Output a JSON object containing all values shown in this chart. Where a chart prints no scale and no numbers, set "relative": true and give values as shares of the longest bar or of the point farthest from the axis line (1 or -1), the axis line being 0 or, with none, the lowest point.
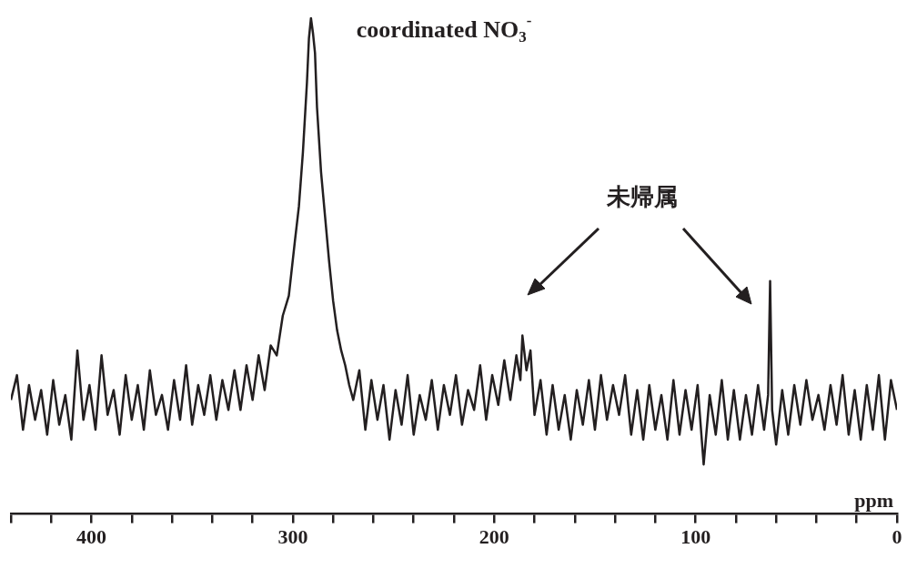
{
  "chart_data": {
    "type": "line",
    "relative": true,
    "xlabel": "ppm",
    "xlim": [
      440,
      0
    ],
    "xticks": [
      {
        "value": 440,
        "label": null
      },
      {
        "value": 420,
        "label": null
      },
      400,
      {
        "value": 380,
        "label": null
      },
      {
        "value": 360,
        "label": null
      },
      {
        "value": 340,
        "label": null
      },
      {
        "value": 320,
        "label": null
      },
      300,
      {
        "value": 280,
        "label": null
      },
      {
        "value": 260,
        "label": null
      },
      {
        "value": 240,
        "label": null
      },
      {
        "value": 220,
        "label": null
      },
      200,
      {
        "value": 180,
        "label": null
      },
      {
        "value": 160,
        "label": null
      },
      {
        "value": 140,
        "label": null
      },
      {
        "value": 120,
        "label": null
      },
      100,
      {
        "value": 80,
        "label": null
      },
      {
        "value": 60,
        "label": null
      },
      {
        "value": 40,
        "label": null
      },
      {
        "value": 20,
        "label": null
      },
      0
    ],
    "annotations": [
      {
        "text": "coordinated NO$_{3}$$^{-}$",
        "x": 291,
        "y": 1
      },
      "未帰属"
    ],
    "series": [
      {
        "color": "#231f20",
        "x": [
          440,
          437,
          434,
          431,
          428,
          425,
          422,
          419,
          416,
          413,
          410,
          407,
          404,
          401,
          398,
          395,
          392,
          389,
          386,
          383,
          380,
          377,
          374,
          371,
          368,
          365,
          362,
          359,
          356,
          353,
          350,
          347,
          344,
          341,
          338,
          335,
          332,
          329,
          326,
          323,
          320,
          317,
          314,
          311,
          308,
          305,
          302,
          299,
          297,
          295,
          293,
          292,
          291,
          290,
          289,
          288,
          286,
          284,
          282,
          280,
          278,
          276,
          274,
          272,
          270,
          267,
          264,
          261,
          258,
          255,
          252,
          249,
          246,
          243,
          240,
          237,
          234,
          231,
          228,
          225,
          222,
          219,
          216,
          213,
          210,
          207,
          204,
          201,
          198,
          195,
          192,
          189,
          187,
          186,
          184,
          182,
          180,
          177,
          174,
          171,
          168,
          165,
          162,
          159,
          156,
          153,
          150,
          147,
          144,
          141,
          138,
          135,
          132,
          129,
          126,
          123,
          120,
          117,
          114,
          111,
          108,
          105,
          102,
          99,
          96,
          93,
          90,
          87,
          84,
          81,
          78,
          75,
          72,
          69,
          66,
          64,
          63,
          62,
          60,
          57,
          54,
          51,
          48,
          45,
          42,
          39,
          36,
          33,
          30,
          27,
          24,
          21,
          18,
          15,
          12,
          9,
          6,
          3,
          0
        ],
        "values": [
          0.23,
          0.28,
          0.17,
          0.26,
          0.19,
          0.25,
          0.16,
          0.27,
          0.18,
          0.24,
          0.15,
          0.33,
          0.19,
          0.26,
          0.17,
          0.32,
          0.2,
          0.25,
          0.16,
          0.28,
          0.19,
          0.26,
          0.17,
          0.29,
          0.2,
          0.24,
          0.17,
          0.27,
          0.19,
          0.3,
          0.18,
          0.26,
          0.2,
          0.28,
          0.19,
          0.27,
          0.21,
          0.29,
          0.21,
          0.3,
          0.23,
          0.32,
          0.25,
          0.34,
          0.32,
          0.4,
          0.44,
          0.55,
          0.62,
          0.73,
          0.87,
          0.96,
          1,
          0.97,
          0.93,
          0.82,
          0.69,
          0.6,
          0.51,
          0.43,
          0.37,
          0.33,
          0.3,
          0.26,
          0.23,
          0.29,
          0.17,
          0.27,
          0.19,
          0.26,
          0.15,
          0.25,
          0.18,
          0.28,
          0.16,
          0.24,
          0.19,
          0.27,
          0.17,
          0.26,
          0.2,
          0.28,
          0.18,
          0.25,
          0.21,
          0.3,
          0.19,
          0.28,
          0.22,
          0.31,
          0.23,
          0.32,
          0.27,
          0.36,
          0.29,
          0.33,
          0.2,
          0.27,
          0.16,
          0.26,
          0.17,
          0.24,
          0.15,
          0.25,
          0.18,
          0.27,
          0.17,
          0.28,
          0.19,
          0.26,
          0.2,
          0.28,
          0.16,
          0.25,
          0.15,
          0.26,
          0.17,
          0.24,
          0.15,
          0.27,
          0.16,
          0.25,
          0.17,
          0.26,
          0.1,
          0.24,
          0.16,
          0.27,
          0.15,
          0.25,
          0.15,
          0.24,
          0.16,
          0.26,
          0.17,
          0.24,
          0.47,
          0.21,
          0.14,
          0.25,
          0.16,
          0.26,
          0.18,
          0.27,
          0.19,
          0.24,
          0.17,
          0.26,
          0.18,
          0.28,
          0.16,
          0.25,
          0.15,
          0.26,
          0.17,
          0.28,
          0.15,
          0.27,
          0.21
        ]
      }
    ]
  }
}
